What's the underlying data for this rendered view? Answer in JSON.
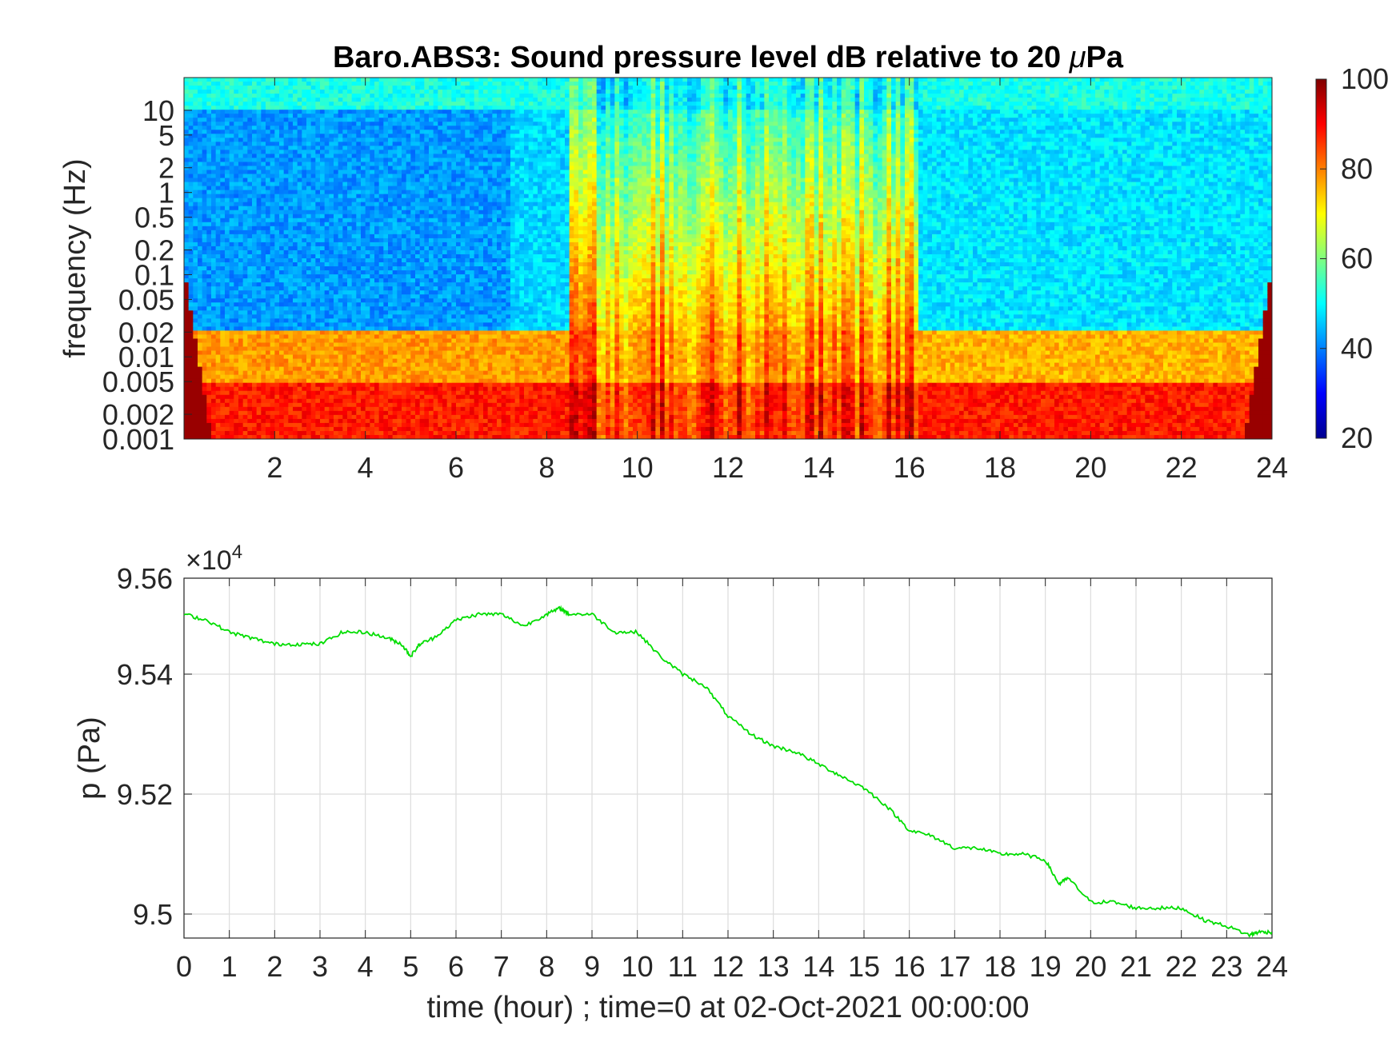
{
  "chart_data": [
    {
      "type": "heatmap",
      "title_prefix": "Baro.ABS3: Sound pressure level dB relative to 20 ",
      "title_mu": "μ",
      "title_suffix": "Pa",
      "xlabel": "",
      "ylabel": "frequency (Hz)",
      "x_ticks": [
        2,
        4,
        6,
        8,
        10,
        12,
        14,
        16,
        18,
        20,
        22,
        24
      ],
      "x_tick_labels": [
        "2",
        "4",
        "6",
        "8",
        "10",
        "12",
        "14",
        "16",
        "18",
        "20",
        "22",
        "24"
      ],
      "xlim": [
        0,
        24
      ],
      "y_scale": "log",
      "y_ticks": [
        0.001,
        0.002,
        0.005,
        0.01,
        0.02,
        0.05,
        0.1,
        0.2,
        0.5,
        1,
        2,
        5,
        10
      ],
      "y_tick_labels": [
        "0.001",
        "0.002",
        "0.005",
        "0.01",
        "0.02",
        "0.05",
        "0.1",
        "0.2",
        "0.5",
        "1",
        "2",
        "5",
        "10"
      ],
      "ylim": [
        0.001,
        25
      ],
      "colorbar": {
        "colormap": "jet",
        "range": [
          20,
          100
        ],
        "ticks": [
          20,
          40,
          60,
          80,
          100
        ],
        "tick_labels": [
          "20",
          "40",
          "60",
          "80",
          "100"
        ],
        "label": ""
      },
      "noise_floor_db": [
        {
          "band": "0.001-0.005 Hz",
          "hours": [
            0,
            24
          ],
          "level_db": 88
        },
        {
          "band": "0.005-0.02 Hz",
          "hours": [
            0,
            8.5
          ],
          "level_db": 78
        },
        {
          "band": "0.005-0.02 Hz",
          "hours": [
            16.5,
            24
          ],
          "level_db": 76
        },
        {
          "band": "0.02-10 Hz",
          "hours": [
            0,
            7.2
          ],
          "level_db": 42
        },
        {
          "band": "0.02-10 Hz",
          "hours": [
            7.2,
            8.5
          ],
          "level_db": 47
        },
        {
          "band": "0.02-10 Hz",
          "hours": [
            16.2,
            24
          ],
          "level_db": 48
        },
        {
          "band": "0.01-5 Hz",
          "hours": [
            8.5,
            16.2
          ],
          "level_db": 78
        },
        {
          "band": "above 10 Hz",
          "hours": [
            0,
            24
          ],
          "level_db": 52
        }
      ]
    },
    {
      "type": "line",
      "exponent_base": "×10",
      "exponent_power": "4",
      "xlabel": "time (hour) ; time=0 at 02-Oct-2021 00:00:00",
      "ylabel": "p (Pa)",
      "xlim": [
        0,
        24
      ],
      "ylim": [
        94.96,
        95.56
      ],
      "x_ticks": [
        0,
        1,
        2,
        3,
        4,
        5,
        6,
        7,
        8,
        9,
        10,
        11,
        12,
        13,
        14,
        15,
        16,
        17,
        18,
        19,
        20,
        21,
        22,
        23,
        24
      ],
      "x_tick_labels": [
        "0",
        "1",
        "2",
        "3",
        "4",
        "5",
        "6",
        "7",
        "8",
        "9",
        "10",
        "11",
        "12",
        "13",
        "14",
        "15",
        "16",
        "17",
        "18",
        "19",
        "20",
        "21",
        "22",
        "23",
        "24"
      ],
      "y_ticks": [
        95.0,
        95.2,
        95.4,
        95.56
      ],
      "y_tick_labels": [
        "9.5",
        "9.52",
        "9.54",
        "9.56"
      ],
      "y_tick_values_scaled": [
        9.5,
        9.52,
        9.54,
        9.56
      ],
      "grid": true,
      "line_color": "#00dd00",
      "series": [
        {
          "x": [
            0,
            0.5,
            1,
            1.5,
            2,
            2.5,
            3,
            3.5,
            4,
            4.5,
            4.8,
            5,
            5.2,
            5.5,
            6,
            6.5,
            7,
            7.5,
            8,
            8.3,
            8.5,
            9,
            9.5,
            10,
            10.5,
            11,
            11.5,
            12,
            12.5,
            13,
            13.5,
            14,
            14.5,
            15,
            15.5,
            16,
            16.5,
            17,
            17.5,
            18,
            18.5,
            19,
            19.3,
            19.5,
            20,
            20.5,
            21,
            21.5,
            22,
            22.5,
            23,
            23.5,
            23.7,
            24
          ],
          "y": [
            95.5,
            95.49,
            95.47,
            95.46,
            95.45,
            95.45,
            95.45,
            95.47,
            95.47,
            95.46,
            95.45,
            95.43,
            95.45,
            95.46,
            95.49,
            95.5,
            95.5,
            95.48,
            95.5,
            95.51,
            95.5,
            95.5,
            95.47,
            95.47,
            95.43,
            95.4,
            95.38,
            95.33,
            95.3,
            95.28,
            95.27,
            95.25,
            95.23,
            95.21,
            95.18,
            95.14,
            95.13,
            95.11,
            95.11,
            95.1,
            95.1,
            95.09,
            95.05,
            95.06,
            95.02,
            95.02,
            95.01,
            95.01,
            95.01,
            94.99,
            94.98,
            94.965,
            94.97,
            94.97
          ]
        }
      ]
    }
  ]
}
